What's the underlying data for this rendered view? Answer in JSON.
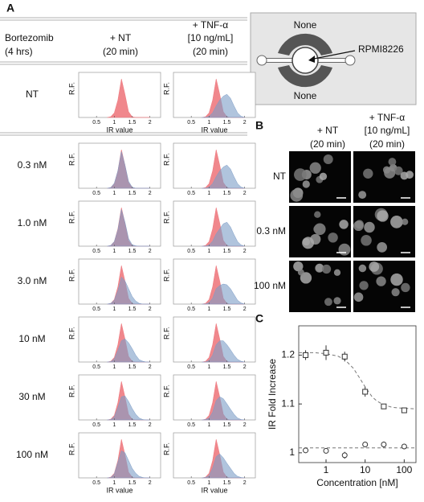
{
  "panel_a": {
    "label": "A",
    "headers": {
      "treatment": [
        "Bortezomib",
        "(4 hrs)"
      ],
      "columns": [
        [
          "+ NT",
          "(20 min)"
        ],
        [
          "+ TNF-α",
          "[10 ng/mL]",
          "(20 min)"
        ]
      ]
    },
    "x_label": "IR value",
    "y_label": "R.F.",
    "xlim": [
      0,
      2.3
    ],
    "xticks": [
      0.5,
      1,
      1.5,
      2
    ],
    "ylim": [
      0,
      1
    ],
    "colors": [
      "#ee7a80",
      "#7c9cc6"
    ],
    "x": [
      0.8,
      0.9,
      1.0,
      1.1,
      1.2,
      1.3,
      1.4,
      1.5,
      1.6,
      1.7,
      1.8,
      1.9,
      2.0
    ],
    "rows": [
      {
        "label": "NT",
        "plots": [
          [
            [
              0,
              0.02,
              0.12,
              0.45,
              1,
              0.6,
              0.15,
              0.02,
              0,
              0,
              0,
              0,
              0
            ]
          ],
          [
            [
              0,
              0.02,
              0.12,
              0.45,
              1,
              0.6,
              0.15,
              0.02,
              0,
              0,
              0,
              0,
              0
            ],
            [
              0,
              0,
              0.03,
              0.12,
              0.3,
              0.45,
              0.55,
              0.6,
              0.5,
              0.3,
              0.12,
              0.03,
              0
            ]
          ]
        ]
      },
      {
        "label": "0.3 nM",
        "plots": [
          [
            [
              0,
              0.02,
              0.12,
              0.45,
              1,
              0.6,
              0.15,
              0.02,
              0,
              0,
              0,
              0,
              0
            ],
            [
              0,
              0.02,
              0.13,
              0.45,
              0.95,
              0.6,
              0.18,
              0.03,
              0,
              0,
              0,
              0,
              0
            ]
          ],
          [
            [
              0,
              0.02,
              0.12,
              0.45,
              1,
              0.6,
              0.15,
              0.02,
              0,
              0,
              0,
              0,
              0
            ],
            [
              0,
              0,
              0.03,
              0.12,
              0.3,
              0.45,
              0.55,
              0.6,
              0.5,
              0.3,
              0.12,
              0.03,
              0
            ]
          ]
        ]
      },
      {
        "label": "1.0 nM",
        "plots": [
          [
            [
              0,
              0.02,
              0.12,
              0.45,
              1,
              0.6,
              0.15,
              0.02,
              0,
              0,
              0,
              0,
              0
            ],
            [
              0,
              0.02,
              0.12,
              0.42,
              0.95,
              0.62,
              0.2,
              0.04,
              0.01,
              0,
              0,
              0,
              0
            ]
          ],
          [
            [
              0,
              0.02,
              0.12,
              0.45,
              1,
              0.6,
              0.15,
              0.02,
              0,
              0,
              0,
              0,
              0
            ],
            [
              0,
              0,
              0.03,
              0.13,
              0.32,
              0.45,
              0.58,
              0.62,
              0.5,
              0.3,
              0.12,
              0.03,
              0
            ]
          ]
        ]
      },
      {
        "label": "3.0 nM",
        "plots": [
          [
            [
              0,
              0.02,
              0.12,
              0.45,
              1,
              0.6,
              0.15,
              0.02,
              0,
              0,
              0,
              0,
              0
            ],
            [
              0,
              0.02,
              0.1,
              0.35,
              0.7,
              0.6,
              0.4,
              0.2,
              0.08,
              0.02,
              0,
              0,
              0
            ]
          ],
          [
            [
              0,
              0.02,
              0.12,
              0.45,
              1,
              0.6,
              0.15,
              0.02,
              0,
              0,
              0,
              0,
              0
            ],
            [
              0,
              0,
              0.04,
              0.15,
              0.4,
              0.48,
              0.52,
              0.5,
              0.4,
              0.25,
              0.1,
              0.03,
              0
            ]
          ]
        ]
      },
      {
        "label": "10 nM",
        "plots": [
          [
            [
              0,
              0.02,
              0.12,
              0.45,
              1,
              0.6,
              0.15,
              0.02,
              0,
              0,
              0,
              0,
              0
            ],
            [
              0,
              0.01,
              0.08,
              0.3,
              0.55,
              0.6,
              0.5,
              0.35,
              0.18,
              0.06,
              0.02,
              0,
              0
            ]
          ],
          [
            [
              0,
              0.02,
              0.12,
              0.45,
              1,
              0.6,
              0.15,
              0.02,
              0,
              0,
              0,
              0,
              0
            ],
            [
              0,
              0,
              0.04,
              0.18,
              0.45,
              0.55,
              0.55,
              0.45,
              0.32,
              0.18,
              0.07,
              0.02,
              0
            ]
          ]
        ]
      },
      {
        "label": "30 nM",
        "plots": [
          [
            [
              0,
              0.02,
              0.12,
              0.45,
              1,
              0.6,
              0.15,
              0.02,
              0,
              0,
              0,
              0,
              0
            ],
            [
              0,
              0.01,
              0.08,
              0.32,
              0.6,
              0.62,
              0.48,
              0.3,
              0.15,
              0.05,
              0.01,
              0,
              0
            ]
          ],
          [
            [
              0,
              0.02,
              0.12,
              0.45,
              1,
              0.6,
              0.15,
              0.02,
              0,
              0,
              0,
              0,
              0
            ],
            [
              0,
              0.01,
              0.05,
              0.2,
              0.5,
              0.6,
              0.55,
              0.42,
              0.28,
              0.15,
              0.05,
              0.01,
              0
            ]
          ]
        ]
      },
      {
        "label": "100 nM",
        "plots": [
          [
            [
              0,
              0.02,
              0.12,
              0.45,
              1,
              0.6,
              0.15,
              0.02,
              0,
              0,
              0,
              0,
              0
            ],
            [
              0,
              0.01,
              0.1,
              0.4,
              0.7,
              0.65,
              0.45,
              0.25,
              0.12,
              0.04,
              0.01,
              0,
              0
            ]
          ],
          [
            [
              0,
              0.02,
              0.12,
              0.45,
              1,
              0.6,
              0.15,
              0.02,
              0,
              0,
              0,
              0,
              0
            ],
            [
              0,
              0.01,
              0.06,
              0.25,
              0.55,
              0.62,
              0.52,
              0.38,
              0.25,
              0.12,
              0.04,
              0.01,
              0
            ]
          ]
        ]
      }
    ]
  },
  "diagram": {
    "top": "None",
    "bottom": "None",
    "cell": "RPMI8226"
  },
  "panel_b": {
    "label": "B",
    "columns": [
      [
        "+ NT",
        "(20 min)"
      ],
      [
        "+ TNF-α",
        "[10 ng/mL]",
        "(20 min)"
      ]
    ],
    "rows": [
      "NT",
      "0.3 nM",
      "100 nM"
    ]
  },
  "panel_c_label": "C",
  "chart_data": {
    "type": "scatter",
    "x_label": "Concentration [nM]",
    "y_label": "IR Fold Increase",
    "xscale": "log",
    "xlim": [
      0.2,
      200
    ],
    "xticks": [
      1,
      10,
      100
    ],
    "ylim": [
      0.98,
      1.26
    ],
    "yticks": [
      1,
      1.1,
      1.2
    ],
    "color": "#333333",
    "fit_color": "#777777",
    "series": [
      {
        "marker": "square",
        "x": [
          0.3,
          1,
          3,
          10,
          30,
          100
        ],
        "values": [
          1.2,
          1.205,
          1.197,
          1.125,
          1.095,
          1.087
        ],
        "errors": [
          0.01,
          0.015,
          0.01,
          0.01,
          0.005,
          0.005
        ]
      },
      {
        "marker": "circle",
        "x": [
          0.3,
          1,
          3,
          10,
          30,
          100
        ],
        "values": [
          1.005,
          1.004,
          0.995,
          1.017,
          1.017,
          1.013
        ],
        "errors": [
          0.003,
          0.002,
          0.007,
          0.003,
          0.006,
          0.003
        ]
      }
    ],
    "fits": [
      {
        "x": [
          0.2,
          0.5,
          1,
          2,
          3,
          5,
          7,
          10,
          15,
          20,
          30,
          50,
          100,
          200
        ],
        "values": [
          1.205,
          1.205,
          1.203,
          1.198,
          1.191,
          1.173,
          1.155,
          1.135,
          1.115,
          1.106,
          1.098,
          1.093,
          1.091,
          1.09
        ]
      },
      {
        "x": [
          0.2,
          200
        ],
        "values": [
          1.01,
          1.01
        ]
      }
    ]
  }
}
